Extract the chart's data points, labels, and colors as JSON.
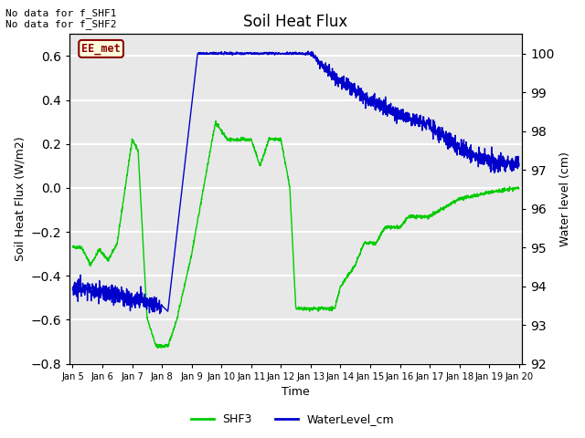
{
  "title": "Soil Heat Flux",
  "ylabel_left": "Soil Heat Flux (W/m2)",
  "ylabel_right": "Water level (cm)",
  "xlabel": "Time",
  "ylim_left": [
    -0.8,
    0.7
  ],
  "ylim_right": [
    92.0,
    100.5
  ],
  "yticks_left": [
    -0.8,
    -0.6,
    -0.4,
    -0.2,
    0.0,
    0.2,
    0.4,
    0.6
  ],
  "yticks_right": [
    92.0,
    93.0,
    94.0,
    95.0,
    96.0,
    97.0,
    98.0,
    99.0,
    100.0
  ],
  "xtick_labels": [
    "Jan 5",
    "Jan 6",
    "Jan 7",
    "Jan 8",
    "Jan 9",
    "Jan 10",
    "Jan 11",
    "Jan 12",
    "Jan 13",
    "Jan 14",
    "Jan 15",
    "Jan 16",
    "Jan 17",
    "Jan 18",
    "Jan 19",
    "Jan 20"
  ],
  "no_data_text1": "No data for f_SHF1",
  "no_data_text2": "No data for f_SHF2",
  "ee_met_label": "EE_met",
  "legend_entries": [
    "SHF3",
    "WaterLevel_cm"
  ],
  "shf3_color": "#00cc00",
  "water_color": "#0000cc",
  "plot_bg_color": "#e8e8e8",
  "grid_color": "#ffffff",
  "fig_bg_color": "#ffffff"
}
